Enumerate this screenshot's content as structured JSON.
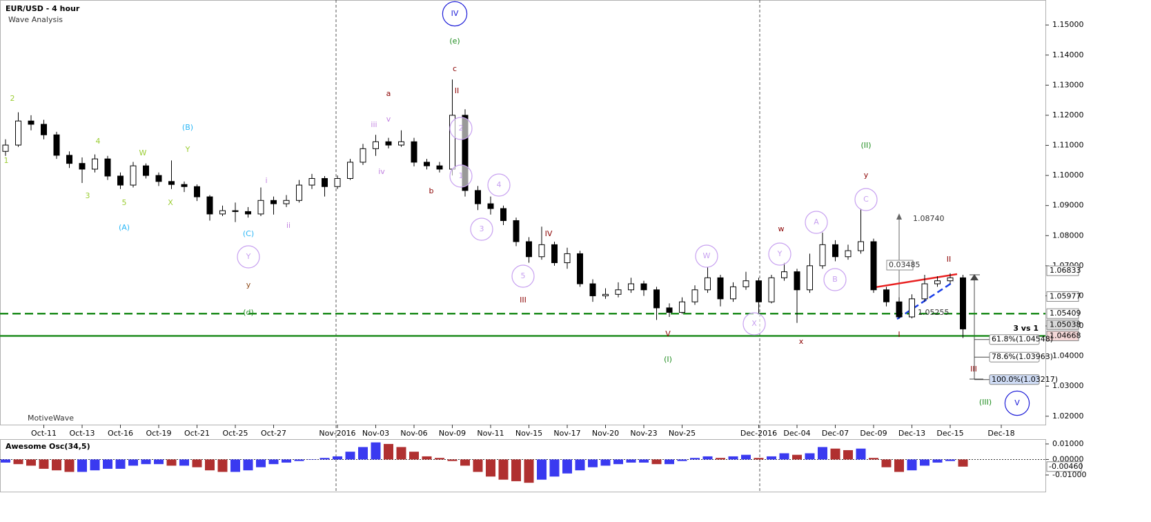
{
  "chart_data": [
    {
      "type": "candlestick",
      "title": "EUR/USD - 4 hour",
      "subtitle": "Wave Analysis",
      "watermark": "MotiveWave",
      "note": "3 vs 1",
      "categories": [
        null,
        null,
        null,
        "Oct-11",
        null,
        null,
        "Oct-13",
        null,
        null,
        "Oct-16",
        null,
        null,
        "Oct-19",
        null,
        null,
        "Oct-21",
        null,
        null,
        "Oct-25",
        null,
        null,
        "Oct-27",
        null,
        null,
        null,
        null,
        "Nov-2016",
        null,
        null,
        "Nov-03",
        null,
        null,
        "Nov-06",
        null,
        null,
        "Nov-09",
        null,
        null,
        "Nov-11",
        null,
        null,
        "Nov-15",
        null,
        null,
        "Nov-17",
        null,
        null,
        "Nov-20",
        null,
        null,
        "Nov-23",
        null,
        null,
        "Nov-25",
        null,
        null,
        null,
        null,
        null,
        "Dec-2016",
        null,
        null,
        "Dec-04",
        null,
        null,
        "Dec-07",
        null,
        null,
        "Dec-09",
        null,
        null,
        "Dec-13",
        null,
        null,
        "Dec-15",
        null,
        null,
        null,
        "Dec-18"
      ],
      "open": [
        1.108,
        1.1101,
        1.1181,
        1.117,
        1.1135,
        1.1067,
        1.104,
        1.1021,
        1.1055,
        1.0998,
        1.0968,
        1.1032,
        1.1,
        1.098,
        1.097,
        1.0963,
        1.0929,
        1.0872,
        1.0883,
        1.088,
        1.0872,
        1.0917,
        1.0906,
        1.0917,
        1.0968,
        1.099,
        1.0963,
        1.099,
        1.1044,
        1.1089,
        1.1112,
        1.1101,
        1.1112,
        1.1044,
        1.1032,
        1.1021,
        1.12,
        1.095,
        1.0906,
        1.089,
        1.085,
        1.078,
        1.073,
        1.077,
        1.071,
        1.074,
        1.064,
        1.06,
        1.0605,
        1.062,
        1.064,
        1.062,
        1.056,
        1.0545,
        1.058,
        1.062,
        1.066,
        1.059,
        1.063,
        1.065,
        1.058,
        1.066,
        1.068,
        1.062,
        1.07,
        1.077,
        1.073,
        1.075,
        1.078,
        1.062,
        1.058,
        1.053,
        1.059,
        1.064,
        1.065,
        1.066,
        null,
        null,
        null
      ],
      "high": [
        1.112,
        1.121,
        1.12,
        1.1185,
        1.1145,
        1.108,
        1.106,
        1.107,
        1.1065,
        1.101,
        1.1045,
        1.104,
        1.101,
        1.105,
        1.098,
        1.097,
        1.0935,
        1.09,
        1.091,
        1.0895,
        1.096,
        1.093,
        1.0935,
        1.0985,
        1.1005,
        1.0998,
        1.1,
        1.1055,
        1.1105,
        1.1135,
        1.1125,
        1.115,
        1.1125,
        1.1055,
        1.1045,
        1.1319,
        1.122,
        1.0965,
        1.093,
        1.09,
        1.086,
        1.0795,
        1.083,
        1.078,
        1.076,
        1.075,
        1.0655,
        1.0625,
        1.0645,
        1.066,
        1.065,
        1.063,
        1.0575,
        1.0595,
        1.0635,
        1.0695,
        1.067,
        1.0645,
        1.068,
        1.066,
        1.067,
        1.071,
        1.069,
        1.074,
        1.081,
        1.0785,
        1.077,
        1.089,
        1.079,
        1.063,
        1.0595,
        1.0605,
        1.067,
        1.0665,
        1.0675,
        1.067,
        null,
        null,
        null
      ],
      "low": [
        1.1065,
        1.1095,
        1.115,
        1.112,
        1.1055,
        1.1025,
        1.0975,
        1.101,
        1.0985,
        1.0955,
        1.096,
        1.099,
        1.0965,
        1.0955,
        1.0945,
        1.0915,
        1.085,
        1.0865,
        1.0845,
        1.086,
        1.0865,
        1.087,
        1.0895,
        1.091,
        1.0955,
        1.093,
        1.0955,
        1.0985,
        1.1035,
        1.1065,
        1.109,
        1.1095,
        1.103,
        1.102,
        1.101,
        1.1,
        1.093,
        1.0885,
        1.087,
        1.0835,
        1.0765,
        1.071,
        1.072,
        1.07,
        1.069,
        1.063,
        1.058,
        1.059,
        1.0595,
        1.061,
        1.06,
        1.052,
        1.053,
        1.054,
        1.057,
        1.061,
        1.0565,
        1.058,
        1.062,
        1.054,
        1.0575,
        1.065,
        1.051,
        1.061,
        1.069,
        1.0715,
        1.072,
        1.074,
        1.061,
        1.0565,
        1.0525,
        1.0525,
        1.058,
        1.063,
        1.064,
        1.046,
        null,
        null,
        null
      ],
      "close": [
        1.1101,
        1.1181,
        1.117,
        1.1135,
        1.1067,
        1.104,
        1.1021,
        1.1055,
        1.0998,
        1.0968,
        1.1032,
        1.1,
        1.098,
        1.097,
        1.0963,
        1.0929,
        1.0872,
        1.0883,
        1.088,
        1.0872,
        1.0917,
        1.0906,
        1.0917,
        1.0968,
        1.099,
        1.0963,
        1.099,
        1.1044,
        1.1089,
        1.1112,
        1.1101,
        1.1112,
        1.1044,
        1.1032,
        1.1021,
        1.12,
        1.095,
        1.0906,
        1.089,
        1.085,
        1.078,
        1.073,
        1.077,
        1.071,
        1.074,
        1.064,
        1.06,
        1.0605,
        1.062,
        1.064,
        1.062,
        1.056,
        1.0545,
        1.058,
        1.062,
        1.066,
        1.059,
        1.063,
        1.065,
        1.058,
        1.066,
        1.068,
        1.062,
        1.07,
        1.077,
        1.073,
        1.075,
        1.078,
        1.062,
        1.058,
        1.053,
        1.059,
        1.064,
        1.065,
        1.066,
        1.049,
        null,
        null,
        null
      ],
      "up_color": "#ffffff",
      "down_color": "#000000",
      "ylim": [
        1.0172,
        1.1583
      ],
      "yticks": [
        {
          "value": 1.02,
          "label": "1.02000"
        },
        {
          "value": 1.03,
          "label": "1.03000"
        },
        {
          "value": 1.04,
          "label": "1.04000"
        },
        {
          "value": 1.05,
          "label": "1.05000"
        },
        {
          "value": 1.06,
          "label": "1.06000"
        },
        {
          "value": 1.07,
          "label": "1.07000"
        },
        {
          "value": 1.08,
          "label": "1.08000"
        },
        {
          "value": 1.09,
          "label": "1.09000"
        },
        {
          "value": 1.1,
          "label": "1.10000"
        },
        {
          "value": 1.11,
          "label": "1.11000"
        },
        {
          "value": 1.12,
          "label": "1.12000"
        },
        {
          "value": 1.13,
          "label": "1.13000"
        },
        {
          "value": 1.14,
          "label": "1.14000"
        },
        {
          "value": 1.15,
          "label": "1.15000"
        }
      ],
      "grid": false,
      "hlines": [
        {
          "value": 1.05409,
          "style": "dashed",
          "color": "#1e8c1e"
        },
        {
          "value": 1.04668,
          "style": "solid",
          "color": "#1e8c1e"
        }
      ],
      "price_tags": [
        {
          "value": 1.06833,
          "color": "#ffffff"
        },
        {
          "value": 1.05977,
          "color": "#ffffff"
        },
        {
          "value": 1.05409,
          "color": "#ffffff"
        },
        {
          "value": 1.05038,
          "color": "#d9d9d9"
        },
        {
          "value": 1.04668,
          "color": "#f4d7d7"
        }
      ],
      "fib_levels": [
        {
          "value": 1.04548,
          "label": "61.8%(1.04548)",
          "color": "#ffffff"
        },
        {
          "value": 1.03963,
          "label": "78.6%(1.03963)",
          "color": "#ffffff"
        },
        {
          "value": 1.03217,
          "label": "100.0%(1.03217)",
          "color": "#cfdcf5"
        }
      ],
      "measure_labels": [
        {
          "value": 1.0874,
          "label": "1.08740"
        },
        {
          "value": 0.03485,
          "label": "0.03485"
        },
        {
          "value": 1.05255,
          "label": "1.05255"
        }
      ],
      "annotations": [
        {
          "text": "2",
          "color": "#9acd32"
        },
        {
          "text": "1",
          "color": "#9acd32"
        },
        {
          "text": "4",
          "color": "#9acd32"
        },
        {
          "text": "3",
          "color": "#9acd32"
        },
        {
          "text": "5",
          "color": "#9acd32"
        },
        {
          "text": "W",
          "color": "#9acd32"
        },
        {
          "text": "Y",
          "color": "#9acd32"
        },
        {
          "text": "X",
          "color": "#9acd32"
        },
        {
          "text": "(B)",
          "color": "#29b6f6"
        },
        {
          "text": "(A)",
          "color": "#29b6f6"
        },
        {
          "text": "(C)",
          "color": "#29b6f6"
        },
        {
          "text": "Y",
          "color": "#c7a0f0"
        },
        {
          "text": "y",
          "color": "#8b4513"
        },
        {
          "text": "(d)",
          "color": "#1e8c1e"
        },
        {
          "text": "i",
          "color": "#c080e0"
        },
        {
          "text": "ii",
          "color": "#c080e0"
        },
        {
          "text": "iii",
          "color": "#c080e0"
        },
        {
          "text": "v",
          "color": "#c080e0"
        },
        {
          "text": "iv",
          "color": "#c080e0"
        },
        {
          "text": "a",
          "color": "#8b0000"
        },
        {
          "text": "b",
          "color": "#8b0000"
        },
        {
          "text": "c",
          "color": "#8b0000"
        },
        {
          "text": "(e)",
          "color": "#1e8c1e"
        },
        {
          "text": "IV",
          "color": "#1c1cd8"
        },
        {
          "text": "II",
          "color": "#8b0000"
        },
        {
          "text": "2",
          "color": "#c7a0f0"
        },
        {
          "text": "1",
          "color": "#c7a0f0"
        },
        {
          "text": "4",
          "color": "#c7a0f0"
        },
        {
          "text": "3",
          "color": "#c7a0f0"
        },
        {
          "text": "5",
          "color": "#c7a0f0"
        },
        {
          "text": "IV",
          "color": "#8b0000"
        },
        {
          "text": "III",
          "color": "#8b0000"
        },
        {
          "text": "W",
          "color": "#c7a0f0"
        },
        {
          "text": "V",
          "color": "#8b0000"
        },
        {
          "text": "(I)",
          "color": "#1e8c1e"
        },
        {
          "text": "X",
          "color": "#c7a0f0"
        },
        {
          "text": "Y",
          "color": "#c7a0f0"
        },
        {
          "text": "w",
          "color": "#8b0000"
        },
        {
          "text": "x",
          "color": "#8b0000"
        },
        {
          "text": "A",
          "color": "#c7a0f0"
        },
        {
          "text": "B",
          "color": "#c7a0f0"
        },
        {
          "text": "(II)",
          "color": "#1e8c1e"
        },
        {
          "text": "y",
          "color": "#8b0000"
        },
        {
          "text": "C",
          "color": "#c7a0f0"
        },
        {
          "text": "II",
          "color": "#8b0000"
        },
        {
          "text": "I",
          "color": "#8b0000"
        },
        {
          "text": "III",
          "color": "#8b0000"
        },
        {
          "text": "(III)",
          "color": "#1e8c1e"
        },
        {
          "text": "V",
          "color": "#1c1cd8"
        }
      ]
    },
    {
      "type": "bar",
      "title": "Awesome Osc(34,5)",
      "values": [
        -0.002,
        -0.003,
        -0.004,
        -0.006,
        -0.007,
        -0.008,
        -0.008,
        -0.007,
        -0.006,
        -0.006,
        -0.004,
        -0.003,
        -0.003,
        -0.004,
        -0.004,
        -0.005,
        -0.007,
        -0.008,
        -0.008,
        -0.007,
        -0.005,
        -0.003,
        -0.002,
        -0.001,
        0.0,
        0.001,
        0.002,
        0.005,
        0.008,
        0.011,
        0.01,
        0.008,
        0.005,
        0.002,
        0.001,
        -0.001,
        -0.004,
        -0.008,
        -0.011,
        -0.013,
        -0.014,
        -0.015,
        -0.013,
        -0.011,
        -0.009,
        -0.007,
        -0.005,
        -0.004,
        -0.003,
        -0.002,
        -0.002,
        -0.003,
        -0.003,
        -0.001,
        0.001,
        0.002,
        0.001,
        0.002,
        0.003,
        0.001,
        0.002,
        0.004,
        0.003,
        0.004,
        0.008,
        0.007,
        0.006,
        0.007,
        0.001,
        -0.005,
        -0.008,
        -0.007,
        -0.004,
        -0.002,
        -0.001,
        -0.0046,
        null,
        null,
        null
      ],
      "up_color": "#3a3af0",
      "down_color": "#b03030",
      "ylim": [
        -0.0207,
        0.0122
      ],
      "yticks": [
        {
          "value": 0.01,
          "label": "0.01000"
        },
        {
          "value": 0,
          "label": "0.00000"
        },
        {
          "value": -0.01,
          "label": "-0.01000"
        }
      ],
      "price_tags": [
        {
          "value": -0.0046,
          "label": "-0.00460"
        }
      ]
    }
  ]
}
